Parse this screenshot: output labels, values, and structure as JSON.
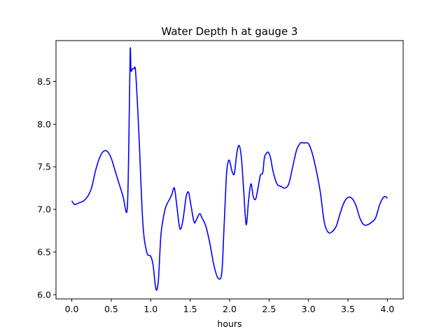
{
  "chart_data": {
    "type": "line",
    "title": "Water Depth h at gauge 3",
    "xlabel": "hours",
    "ylabel": "",
    "xlim": [
      -0.2,
      4.2
    ],
    "ylim": [
      5.95,
      8.98
    ],
    "x_ticks": [
      0.0,
      0.5,
      1.0,
      1.5,
      2.0,
      2.5,
      3.0,
      3.5,
      4.0
    ],
    "x_tick_labels": [
      "0.0",
      "0.5",
      "1.0",
      "1.5",
      "2.0",
      "2.5",
      "3.0",
      "3.5",
      "4.0"
    ],
    "y_ticks": [
      6.0,
      6.5,
      7.0,
      7.5,
      8.0,
      8.5
    ],
    "y_tick_labels": [
      "6.0",
      "6.5",
      "7.0",
      "7.5",
      "8.0",
      "8.5"
    ],
    "grid": false,
    "legend": "none",
    "series": [
      {
        "color": "#0000ff",
        "x": [
          0.0,
          0.03,
          0.05,
          0.1,
          0.15,
          0.2,
          0.25,
          0.3,
          0.35,
          0.4,
          0.45,
          0.5,
          0.55,
          0.6,
          0.65,
          0.7,
          0.72,
          0.74,
          0.75,
          0.77,
          0.79,
          0.81,
          0.85,
          0.9,
          0.95,
          1.0,
          1.03,
          1.06,
          1.08,
          1.1,
          1.13,
          1.17,
          1.2,
          1.24,
          1.27,
          1.3,
          1.33,
          1.36,
          1.38,
          1.41,
          1.45,
          1.48,
          1.51,
          1.55,
          1.58,
          1.62,
          1.65,
          1.7,
          1.75,
          1.8,
          1.85,
          1.9,
          1.93,
          1.96,
          1.98,
          2.0,
          2.03,
          2.06,
          2.09,
          2.12,
          2.15,
          2.18,
          2.21,
          2.24,
          2.27,
          2.3,
          2.33,
          2.36,
          2.39,
          2.42,
          2.44,
          2.46,
          2.49,
          2.52,
          2.55,
          2.6,
          2.65,
          2.7,
          2.75,
          2.8,
          2.85,
          2.9,
          2.93,
          2.96,
          3.0,
          3.05,
          3.1,
          3.15,
          3.2,
          3.25,
          3.3,
          3.35,
          3.4,
          3.45,
          3.5,
          3.55,
          3.6,
          3.65,
          3.7,
          3.75,
          3.8,
          3.85,
          3.9,
          3.94,
          3.97,
          4.0
        ],
        "y": [
          7.1,
          7.06,
          7.06,
          7.08,
          7.1,
          7.15,
          7.25,
          7.45,
          7.6,
          7.68,
          7.68,
          7.6,
          7.45,
          7.3,
          7.15,
          6.98,
          7.6,
          8.85,
          8.63,
          8.65,
          8.65,
          8.6,
          7.9,
          6.85,
          6.5,
          6.45,
          6.35,
          6.1,
          6.06,
          6.2,
          6.7,
          6.95,
          7.05,
          7.12,
          7.18,
          7.25,
          7.05,
          6.82,
          6.77,
          6.88,
          7.15,
          7.2,
          7.05,
          6.85,
          6.88,
          6.95,
          6.9,
          6.8,
          6.6,
          6.35,
          6.2,
          6.25,
          6.8,
          7.4,
          7.55,
          7.57,
          7.45,
          7.42,
          7.65,
          7.75,
          7.6,
          7.2,
          6.82,
          7.1,
          7.3,
          7.15,
          7.12,
          7.25,
          7.4,
          7.43,
          7.6,
          7.65,
          7.67,
          7.6,
          7.45,
          7.3,
          7.27,
          7.25,
          7.3,
          7.5,
          7.7,
          7.78,
          7.78,
          7.78,
          7.77,
          7.65,
          7.45,
          7.2,
          6.85,
          6.73,
          6.74,
          6.8,
          6.95,
          7.08,
          7.14,
          7.13,
          7.05,
          6.9,
          6.82,
          6.82,
          6.85,
          6.9,
          7.05,
          7.13,
          7.15,
          7.13
        ]
      }
    ]
  }
}
